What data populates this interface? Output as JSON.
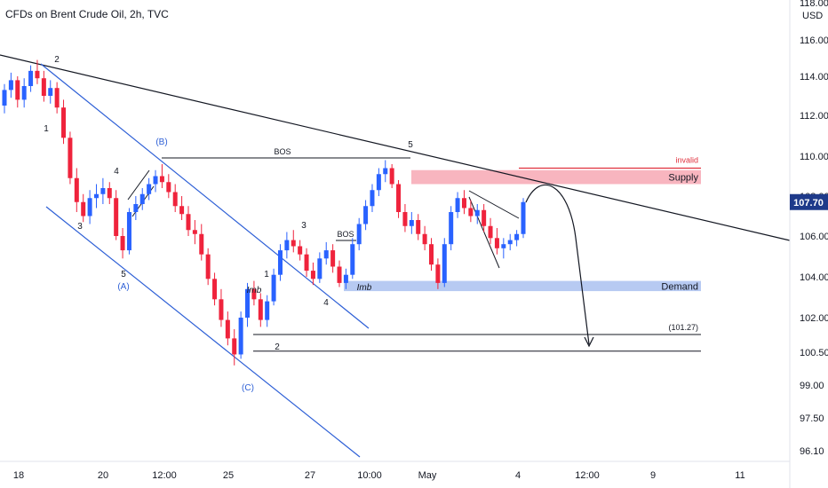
{
  "chart_data": {
    "type": "candlestick",
    "title": "CFDs on Brent Crude Oil, 2h, TVC",
    "currency": "USD",
    "current_price": "107.70",
    "colors": {
      "up": "#2962ff",
      "down": "#ef233c",
      "channel": "#2d5fd6",
      "supply": "#f7a8b4",
      "demand": "#aac1f0",
      "invalid": "#e0303d",
      "trend": "#131722",
      "price_badge": "#1e3a8a"
    },
    "y_ticks": [
      "118.00",
      "116.00",
      "114.00",
      "112.00",
      "110.00",
      "108.00",
      "106.00",
      "104.00",
      "102.00",
      "100.50",
      "99.00",
      "97.50",
      "96.10"
    ],
    "x_ticks": [
      "18",
      "20",
      "12:00",
      "25",
      "27",
      "10:00",
      "May",
      "4",
      "12:00",
      "9",
      "11"
    ],
    "annotations": {
      "bos_1": "BOS",
      "bos_2": "BOS",
      "imb_1": "Imb",
      "imb_2": "Imb",
      "supply": "Supply",
      "demand": "Demand",
      "invalid": "invalid",
      "target": "(101.27)",
      "wave_A": "(A)",
      "wave_B": "(B)",
      "wave_C": "(C)",
      "w1a": "1",
      "w2a": "2",
      "w3a": "3",
      "w4a": "4",
      "w5a": "5",
      "w1b": "1",
      "w2b": "2",
      "w3b": "3",
      "w4b": "4",
      "w5b": "5"
    },
    "zones": {
      "supply": [
        108.6,
        109.3
      ],
      "demand": [
        103.3,
        103.8
      ],
      "invalid_level": 109.4,
      "target_level": 101.27,
      "lower_level": 100.55
    },
    "candles": [
      [
        112.5,
        113.6,
        112.1,
        113.3
      ],
      [
        113.3,
        114.2,
        112.9,
        113.8
      ],
      [
        113.8,
        114.0,
        112.4,
        112.8
      ],
      [
        112.8,
        113.9,
        112.4,
        113.5
      ],
      [
        113.5,
        114.6,
        113.2,
        114.3
      ],
      [
        114.3,
        114.9,
        113.6,
        113.9
      ],
      [
        113.9,
        114.3,
        112.7,
        113.0
      ],
      [
        113.0,
        113.8,
        112.6,
        113.4
      ],
      [
        113.4,
        113.7,
        112.1,
        112.4
      ],
      [
        112.4,
        112.8,
        110.6,
        110.9
      ],
      [
        110.9,
        111.2,
        108.6,
        108.9
      ],
      [
        108.9,
        109.4,
        107.2,
        107.7
      ],
      [
        107.7,
        108.1,
        106.7,
        107.0
      ],
      [
        107.0,
        108.3,
        106.6,
        107.9
      ],
      [
        107.9,
        108.6,
        107.4,
        108.1
      ],
      [
        108.1,
        108.9,
        107.6,
        108.4
      ],
      [
        108.4,
        108.7,
        107.6,
        107.9
      ],
      [
        107.9,
        108.3,
        105.8,
        106.0
      ],
      [
        106.0,
        106.4,
        104.9,
        105.3
      ],
      [
        105.3,
        107.4,
        105.1,
        107.2
      ],
      [
        107.2,
        108.0,
        106.8,
        107.6
      ],
      [
        107.6,
        108.4,
        107.3,
        108.1
      ],
      [
        108.1,
        108.9,
        107.8,
        108.6
      ],
      [
        108.6,
        109.3,
        108.2,
        109.0
      ],
      [
        109.0,
        109.6,
        108.4,
        108.7
      ],
      [
        108.7,
        109.1,
        107.9,
        108.2
      ],
      [
        108.2,
        108.6,
        107.2,
        107.5
      ],
      [
        107.5,
        108.0,
        106.8,
        107.1
      ],
      [
        107.1,
        107.5,
        106.0,
        106.3
      ],
      [
        106.3,
        106.8,
        105.6,
        106.1
      ],
      [
        106.1,
        106.6,
        104.8,
        105.1
      ],
      [
        105.1,
        105.4,
        103.6,
        103.9
      ],
      [
        103.9,
        104.2,
        102.6,
        102.9
      ],
      [
        102.9,
        103.4,
        101.6,
        101.9
      ],
      [
        101.9,
        102.3,
        100.8,
        101.1
      ],
      [
        101.1,
        101.5,
        99.9,
        100.4
      ],
      [
        100.4,
        102.3,
        100.2,
        102.0
      ],
      [
        102.0,
        103.7,
        101.6,
        103.4
      ],
      [
        103.4,
        103.8,
        102.6,
        102.9
      ],
      [
        102.9,
        103.2,
        101.6,
        101.9
      ],
      [
        101.9,
        103.1,
        101.6,
        102.8
      ],
      [
        102.8,
        104.4,
        102.6,
        104.1
      ],
      [
        104.1,
        105.6,
        103.8,
        105.3
      ],
      [
        105.3,
        106.2,
        104.9,
        105.8
      ],
      [
        105.8,
        106.3,
        105.2,
        105.5
      ],
      [
        105.5,
        105.8,
        104.8,
        105.1
      ],
      [
        105.1,
        105.4,
        104.0,
        104.3
      ],
      [
        104.3,
        104.7,
        103.6,
        103.9
      ],
      [
        103.9,
        105.2,
        103.7,
        104.9
      ],
      [
        104.9,
        105.7,
        104.6,
        105.3
      ],
      [
        105.3,
        105.6,
        104.2,
        104.5
      ],
      [
        104.5,
        104.8,
        103.5,
        103.7
      ],
      [
        103.7,
        104.4,
        103.4,
        104.1
      ],
      [
        104.1,
        105.9,
        103.9,
        105.6
      ],
      [
        105.6,
        106.9,
        105.3,
        106.6
      ],
      [
        106.6,
        107.8,
        106.3,
        107.5
      ],
      [
        107.5,
        108.6,
        107.2,
        108.3
      ],
      [
        108.3,
        109.4,
        108.0,
        109.1
      ],
      [
        109.1,
        109.8,
        108.7,
        109.4
      ],
      [
        109.4,
        109.6,
        108.4,
        108.6
      ],
      [
        108.6,
        108.8,
        106.9,
        107.2
      ],
      [
        107.2,
        107.6,
        106.2,
        106.5
      ],
      [
        106.5,
        107.2,
        106.1,
        106.8
      ],
      [
        106.8,
        107.1,
        105.8,
        106.1
      ],
      [
        106.1,
        106.5,
        105.3,
        105.6
      ],
      [
        105.6,
        105.9,
        104.3,
        104.6
      ],
      [
        104.6,
        104.9,
        103.4,
        103.7
      ],
      [
        103.7,
        105.9,
        103.5,
        105.6
      ],
      [
        105.6,
        107.5,
        105.3,
        107.2
      ],
      [
        107.2,
        108.2,
        106.9,
        107.9
      ],
      [
        107.9,
        108.3,
        107.1,
        107.4
      ],
      [
        107.4,
        107.8,
        106.7,
        107.0
      ],
      [
        107.0,
        107.6,
        106.6,
        107.3
      ],
      [
        107.3,
        107.6,
        106.2,
        106.5
      ],
      [
        106.5,
        106.9,
        105.6,
        105.9
      ],
      [
        105.9,
        106.4,
        105.1,
        105.4
      ],
      [
        105.4,
        105.9,
        104.9,
        105.6
      ],
      [
        105.6,
        106.1,
        105.3,
        105.8
      ],
      [
        105.8,
        106.3,
        105.5,
        106.1
      ],
      [
        106.1,
        107.9,
        105.9,
        107.7
      ]
    ]
  }
}
